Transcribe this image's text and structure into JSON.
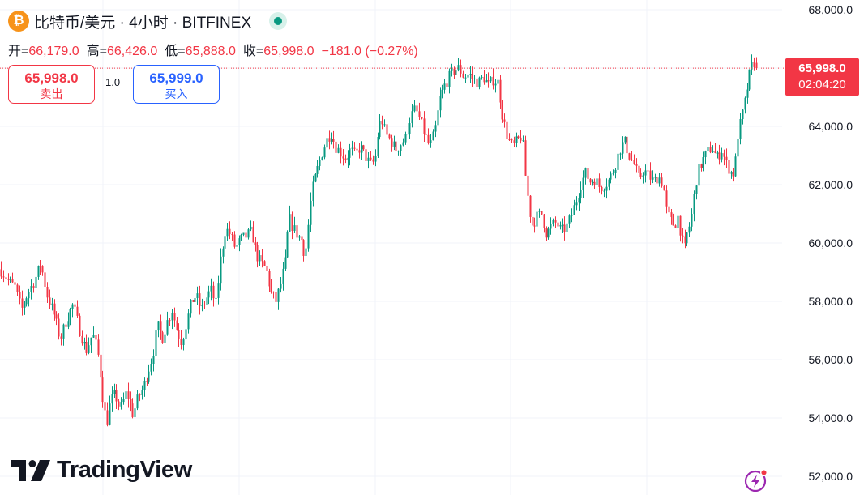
{
  "header": {
    "title": "比特币/美元 · 4小时 · BITFINEX",
    "coin_icon": "bitcoin-icon",
    "status_icon": "live-market-dot-icon"
  },
  "ohlc": {
    "open_label": "开=",
    "open": "66,179.0",
    "high_label": "高=",
    "high": "66,426.0",
    "low_label": "低=",
    "low": "65,888.0",
    "close_label": "收=",
    "close": "65,998.0",
    "change": "−181.0 (−0.27%)"
  },
  "trade": {
    "sell_price": "65,998.0",
    "sell_label": "卖出",
    "spread": "1.0",
    "buy_price": "65,999.0",
    "buy_label": "买入"
  },
  "price_tag": {
    "price": "65,998.0",
    "countdown": "02:04:20"
  },
  "branding": {
    "logo_text": "TradingView",
    "logo_icon": "tradingview-logo-icon",
    "corner_icon": "lightning-bolt-icon"
  },
  "colors": {
    "up": "#089981",
    "down": "#f23645",
    "text": "#131722",
    "grid": "#f0f3fa",
    "brand_orange": "#f7931a",
    "buy_blue": "#2962ff"
  },
  "chart_data": {
    "type": "candlestick",
    "interval": "4h",
    "ylim": [
      51500,
      68600
    ],
    "y_ticks": [
      {
        "value": 52000,
        "label": "52,000.0"
      },
      {
        "value": 54000,
        "label": "54,000.0"
      },
      {
        "value": 56000,
        "label": "56,000.0"
      },
      {
        "value": 58000,
        "label": "58,000.0"
      },
      {
        "value": 60000,
        "label": "60,000.0"
      },
      {
        "value": 62000,
        "label": "62,000.0"
      },
      {
        "value": 64000,
        "label": "64,000.0"
      },
      {
        "value": 66000,
        "label": "66,000.0"
      },
      {
        "value": 68000,
        "label": "68,000.0"
      }
    ],
    "last_price": 65998,
    "grid": true,
    "series_path": [
      [
        0,
        59100
      ],
      [
        10,
        58700
      ],
      [
        18,
        58500
      ],
      [
        26,
        57700
      ],
      [
        34,
        58300
      ],
      [
        42,
        58700
      ],
      [
        50,
        59300
      ],
      [
        58,
        58200
      ],
      [
        66,
        57600
      ],
      [
        74,
        56700
      ],
      [
        82,
        57400
      ],
      [
        90,
        57900
      ],
      [
        98,
        57000
      ],
      [
        106,
        56300
      ],
      [
        114,
        56900
      ],
      [
        120,
        56300
      ],
      [
        124,
        55400
      ],
      [
        128,
        54300
      ],
      [
        132,
        53900
      ],
      [
        136,
        54600
      ],
      [
        142,
        54800
      ],
      [
        148,
        54300
      ],
      [
        156,
        54900
      ],
      [
        164,
        54100
      ],
      [
        170,
        54700
      ],
      [
        176,
        55000
      ],
      [
        182,
        55600
      ],
      [
        188,
        56100
      ],
      [
        194,
        57200
      ],
      [
        200,
        56700
      ],
      [
        206,
        57300
      ],
      [
        212,
        57700
      ],
      [
        218,
        57000
      ],
      [
        224,
        56600
      ],
      [
        230,
        57300
      ],
      [
        236,
        58000
      ],
      [
        242,
        58200
      ],
      [
        248,
        57700
      ],
      [
        254,
        58100
      ],
      [
        260,
        58400
      ],
      [
        266,
        57900
      ],
      [
        272,
        59500
      ],
      [
        278,
        60500
      ],
      [
        284,
        60300
      ],
      [
        290,
        59800
      ],
      [
        296,
        60100
      ],
      [
        302,
        60200
      ],
      [
        310,
        60400
      ],
      [
        316,
        59600
      ],
      [
        322,
        59300
      ],
      [
        328,
        59100
      ],
      [
        334,
        58300
      ],
      [
        340,
        58000
      ],
      [
        346,
        58600
      ],
      [
        352,
        59400
      ],
      [
        356,
        60900
      ],
      [
        360,
        60600
      ],
      [
        366,
        60300
      ],
      [
        372,
        60100
      ],
      [
        376,
        59500
      ],
      [
        380,
        60600
      ],
      [
        384,
        61700
      ],
      [
        390,
        62400
      ],
      [
        396,
        63000
      ],
      [
        402,
        63500
      ],
      [
        408,
        63800
      ],
      [
        414,
        63300
      ],
      [
        420,
        63100
      ],
      [
        426,
        62900
      ],
      [
        432,
        63200
      ],
      [
        438,
        63000
      ],
      [
        444,
        63300
      ],
      [
        450,
        63000
      ],
      [
        456,
        62700
      ],
      [
        462,
        62800
      ],
      [
        466,
        63800
      ],
      [
        470,
        64300
      ],
      [
        476,
        63700
      ],
      [
        482,
        63500
      ],
      [
        488,
        63200
      ],
      [
        494,
        63400
      ],
      [
        500,
        63600
      ],
      [
        506,
        64300
      ],
      [
        512,
        64600
      ],
      [
        518,
        64200
      ],
      [
        524,
        63700
      ],
      [
        530,
        63300
      ],
      [
        536,
        63800
      ],
      [
        542,
        64900
      ],
      [
        548,
        65400
      ],
      [
        554,
        65700
      ],
      [
        560,
        65900
      ],
      [
        566,
        66000
      ],
      [
        572,
        65700
      ],
      [
        578,
        65800
      ],
      [
        584,
        65600
      ],
      [
        590,
        65500
      ],
      [
        596,
        65700
      ],
      [
        602,
        65400
      ],
      [
        608,
        65600
      ],
      [
        614,
        65500
      ],
      [
        620,
        64300
      ],
      [
        626,
        63600
      ],
      [
        632,
        63300
      ],
      [
        638,
        63500
      ],
      [
        644,
        63700
      ],
      [
        648,
        62300
      ],
      [
        652,
        61300
      ],
      [
        656,
        60600
      ],
      [
        662,
        60900
      ],
      [
        668,
        61000
      ],
      [
        674,
        60300
      ],
      [
        680,
        60600
      ],
      [
        686,
        60700
      ],
      [
        692,
        60400
      ],
      [
        698,
        60500
      ],
      [
        704,
        60900
      ],
      [
        710,
        61400
      ],
      [
        716,
        62000
      ],
      [
        722,
        62400
      ],
      [
        728,
        62100
      ],
      [
        734,
        62200
      ],
      [
        740,
        61900
      ],
      [
        746,
        62000
      ],
      [
        752,
        62200
      ],
      [
        758,
        62600
      ],
      [
        764,
        63200
      ],
      [
        770,
        63500
      ],
      [
        776,
        63000
      ],
      [
        782,
        62700
      ],
      [
        788,
        62200
      ],
      [
        794,
        62500
      ],
      [
        800,
        62300
      ],
      [
        806,
        62100
      ],
      [
        812,
        62300
      ],
      [
        818,
        62000
      ],
      [
        822,
        61100
      ],
      [
        826,
        60800
      ],
      [
        832,
        60600
      ],
      [
        836,
        60900
      ],
      [
        840,
        60300
      ],
      [
        844,
        59700
      ],
      [
        848,
        60400
      ],
      [
        852,
        60700
      ],
      [
        856,
        61600
      ],
      [
        860,
        62400
      ],
      [
        866,
        62800
      ],
      [
        872,
        63100
      ],
      [
        878,
        63300
      ],
      [
        884,
        62900
      ],
      [
        890,
        63200
      ],
      [
        896,
        62700
      ],
      [
        902,
        62400
      ],
      [
        906,
        62400
      ],
      [
        910,
        63700
      ],
      [
        914,
        64200
      ],
      [
        918,
        64700
      ],
      [
        922,
        65400
      ],
      [
        926,
        66000
      ],
      [
        930,
        66200
      ],
      [
        934,
        65998
      ]
    ]
  }
}
